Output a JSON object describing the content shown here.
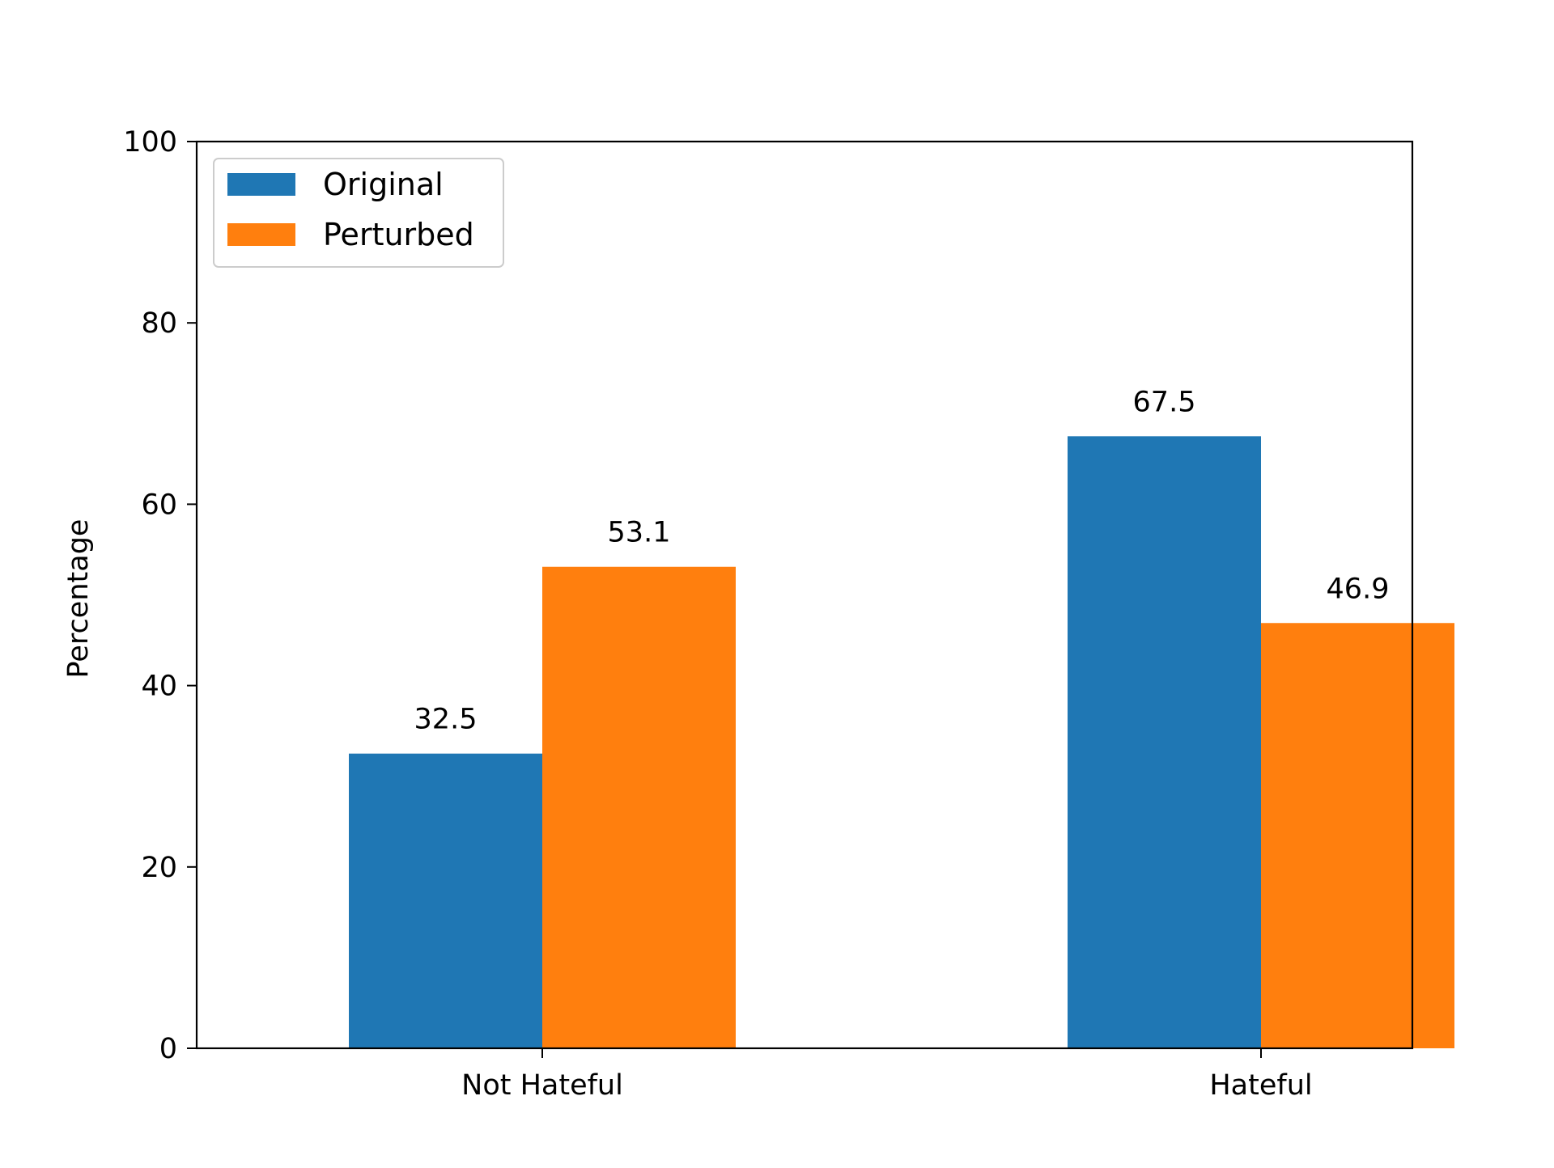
{
  "chart_data": {
    "type": "bar",
    "categories": [
      "Not Hateful",
      "Hateful"
    ],
    "series": [
      {
        "name": "Original",
        "values": [
          32.5,
          67.5
        ],
        "color": "#1f77b4"
      },
      {
        "name": "Perturbed",
        "values": [
          53.1,
          46.9
        ],
        "color": "#ff7f0e"
      }
    ],
    "value_labels": [
      [
        "32.5",
        "67.5"
      ],
      [
        "53.1",
        "46.9"
      ]
    ],
    "title": "",
    "xlabel": "",
    "ylabel": "Percentage",
    "ylim": [
      0,
      100
    ],
    "yticks": [
      0,
      20,
      40,
      60,
      80,
      100
    ],
    "ytick_labels": [
      "0",
      "20",
      "40",
      "60",
      "80",
      "100"
    ],
    "grid": false,
    "legend_position": "top-left"
  }
}
